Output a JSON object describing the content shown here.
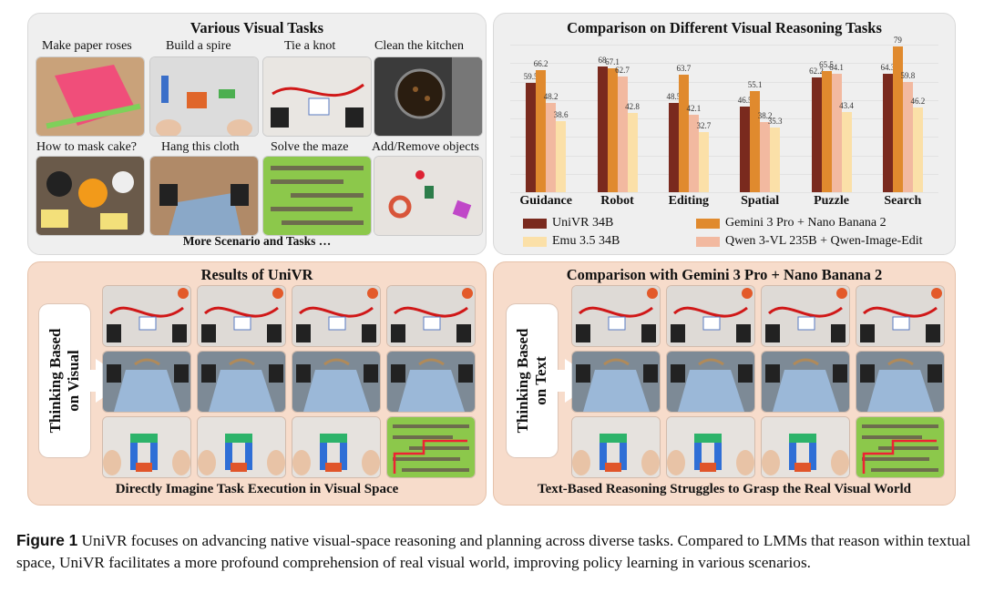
{
  "top_left": {
    "title": "Various Visual Tasks",
    "tasks": [
      "Make paper roses",
      "Build a spire",
      "Tie a knot",
      "Clean the kitchen",
      "How to mask cake?",
      "Hang this cloth",
      "Solve the maze",
      "Add/Remove objects"
    ],
    "footer": "More Scenario and Tasks …"
  },
  "chart_title": "Comparison on Different Visual Reasoning Tasks",
  "chart_data": {
    "type": "bar",
    "title": "Comparison on Different Visual Reasoning Tasks",
    "categories": [
      "Guidance",
      "Robot",
      "Editing",
      "Spatial",
      "Puzzle",
      "Search"
    ],
    "series": [
      {
        "name": "UniVR 34B",
        "color": "#7a2a1e",
        "values": [
          59.5,
          68,
          48.5,
          46.5,
          62.2,
          64.3
        ]
      },
      {
        "name": "Gemini 3 Pro + Nano Banana 2",
        "color": "#e08a2e",
        "values": [
          66.2,
          67.1,
          63.7,
          55.1,
          65.5,
          79
        ]
      },
      {
        "name": "Qwen 3-VL 235B + Qwen-Image-Edit",
        "color": "#f2b9a0",
        "values": [
          48.2,
          62.7,
          42.1,
          38.2,
          64.1,
          59.8
        ]
      },
      {
        "name": "Emu 3.5 34B",
        "color": "#fbe0a8",
        "values": [
          38.6,
          42.8,
          32.7,
          35.3,
          43.4,
          46.2
        ]
      }
    ],
    "value_labels": [
      [
        "59.5",
        "68",
        "48.5",
        "46.5",
        "62.2",
        "64.3"
      ],
      [
        "66.2",
        "67.1",
        "63.7",
        "55.1",
        "65.5",
        "79"
      ],
      [
        "48.2",
        "62.7",
        "42.1",
        "38.2",
        "64.1",
        "59.8"
      ],
      [
        "38.6",
        "42.8",
        "32.7",
        "35.3",
        "43.4",
        "46.2"
      ]
    ],
    "ylim": [
      0,
      85
    ],
    "grid": true,
    "legend_placement": "bottom"
  },
  "bottom_left": {
    "title": "Results of UniVR",
    "side_label_line1": "Thinking Based",
    "side_label_line2": "on Visual",
    "footer": "Directly Imagine Task Execution in Visual Space"
  },
  "bottom_right": {
    "title": "Comparison with Gemini 3 Pro + Nano Banana 2",
    "side_label_line1": "Thinking Based",
    "side_label_line2": "on Text",
    "footer": "Text-Based Reasoning Struggles to Grasp the Real Visual World"
  },
  "caption": {
    "label": "Figure 1",
    "text": "UniVR focuses on advancing native visual-space reasoning and planning across diverse tasks. Compared to LMMs that reason within textual space, UniVR facilitates a more profound comprehension of real visual world, improving policy learning in various scenarios."
  }
}
